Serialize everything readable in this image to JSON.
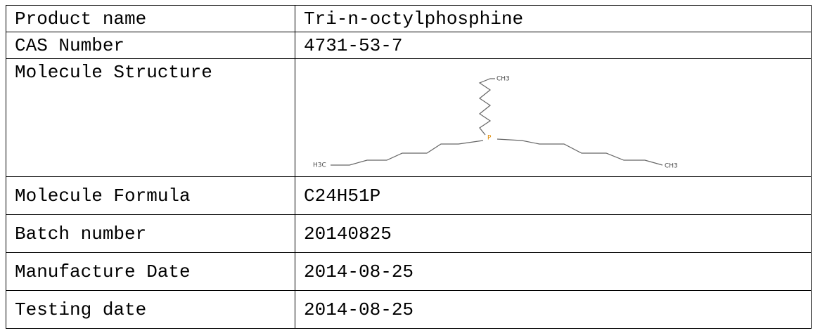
{
  "table": {
    "rows": [
      [
        "Product name",
        "Tri-n-octylphosphine"
      ],
      [
        "CAS Number",
        "4731-53-7"
      ],
      [
        "Molecule Structure",
        null
      ],
      [
        "Molecule Formula",
        "C24H51P"
      ],
      [
        "Batch number",
        "20140825"
      ],
      [
        "Manufacture Date",
        "2014-08-25"
      ],
      [
        "Testing date",
        "2014-08-25"
      ]
    ]
  },
  "structure": {
    "labels": [
      "CH3",
      "P",
      "H3C",
      "CH3"
    ]
  }
}
